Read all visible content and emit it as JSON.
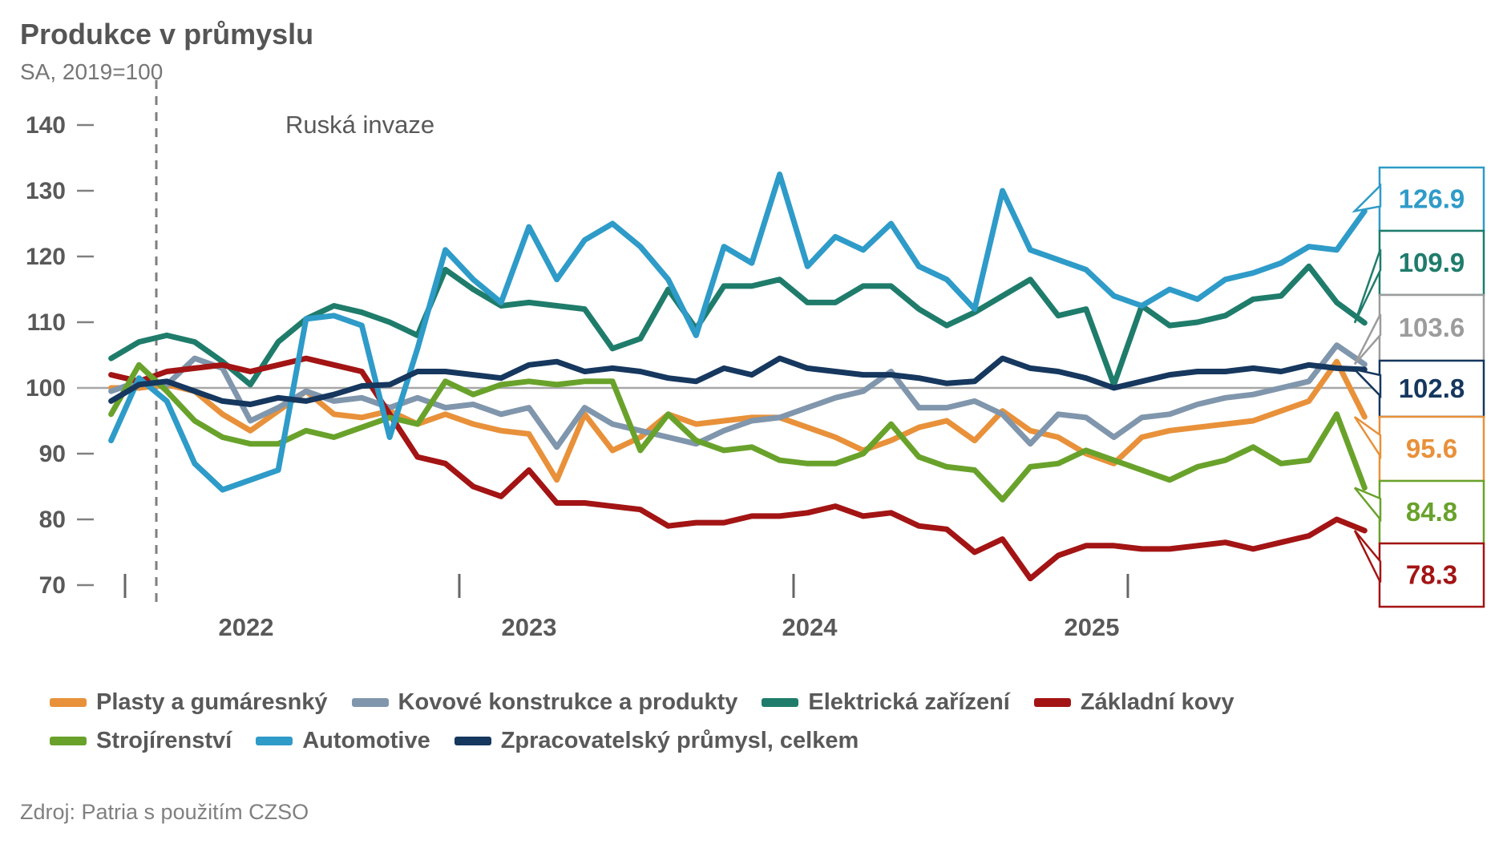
{
  "header": {
    "title": "Produkce v průmyslu",
    "subtitle": "SA, 2019=100"
  },
  "annotation": {
    "label": "Ruská invaze"
  },
  "source": {
    "label": "Zdroj: Patria s použitím CZSO"
  },
  "chart_data": {
    "type": "line",
    "title": "Produkce v průmyslu",
    "subtitle": "SA, 2019=100",
    "grid": "baseline-only",
    "legend_position": "bottom",
    "x": [
      "2021-12",
      "2022-01",
      "2022-02",
      "2022-03",
      "2022-04",
      "2022-05",
      "2022-06",
      "2022-07",
      "2022-08",
      "2022-09",
      "2022-10",
      "2022-11",
      "2022-12",
      "2023-01",
      "2023-02",
      "2023-03",
      "2023-04",
      "2023-05",
      "2023-06",
      "2023-07",
      "2023-08",
      "2023-09",
      "2023-10",
      "2023-11",
      "2023-12",
      "2024-01",
      "2024-02",
      "2024-03",
      "2024-04",
      "2024-05",
      "2024-06",
      "2024-07",
      "2024-08",
      "2024-09",
      "2024-10",
      "2024-11",
      "2024-12",
      "2025-01",
      "2025-02",
      "2025-03",
      "2025-04",
      "2025-05",
      "2025-06",
      "2025-07",
      "2025-08",
      "2025-09"
    ],
    "x_axis": {
      "year_labels": [
        "2022",
        "2023",
        "2024",
        "2025"
      ]
    },
    "y_axis": {
      "ticks": [
        140,
        130,
        120,
        110,
        100,
        90,
        80,
        70
      ],
      "range": [
        70,
        140
      ],
      "baseline": 100
    },
    "event_line": {
      "label": "Ruská invaze",
      "x": "2022-02"
    },
    "series": [
      {
        "name": "Plasty a gumáresnký",
        "color": "#E8913A",
        "end_label": "95.6",
        "values": [
          100,
          100,
          100.5,
          99.5,
          96,
          93.5,
          96.5,
          99.5,
          96,
          95.5,
          96.5,
          94.5,
          96,
          94.5,
          93.5,
          93,
          86,
          96,
          90.5,
          92.5,
          96,
          94.5,
          95,
          95.5,
          95.5,
          94,
          92.5,
          90.5,
          92,
          94,
          95,
          92,
          96.5,
          93.5,
          92.5,
          90,
          88.5,
          92.5,
          93.5,
          94,
          94.5,
          95,
          96.5,
          98,
          104,
          95.6
        ]
      },
      {
        "name": "Kovové konstrukce a produkty",
        "color": "#8096AC",
        "callout_color": "#9C9C9C",
        "end_label": "103.6",
        "values": [
          99.5,
          101,
          100.5,
          104.5,
          103,
          95,
          97,
          99.5,
          98,
          98.5,
          97,
          98.5,
          97,
          97.5,
          96,
          97,
          91,
          97,
          94.5,
          93.5,
          92.5,
          91.5,
          93.5,
          95,
          95.5,
          97,
          98.5,
          99.5,
          102.5,
          97,
          97,
          98,
          96,
          91.5,
          96,
          95.5,
          92.5,
          95.5,
          96,
          97.5,
          98.5,
          99,
          100,
          101,
          106.5,
          103.6
        ]
      },
      {
        "name": "Elektrická zařízení",
        "color": "#1F7C6B",
        "end_label": "109.9",
        "values": [
          104.5,
          107,
          108,
          107,
          104,
          100.5,
          107,
          110.5,
          112.5,
          111.5,
          110,
          108,
          118,
          115,
          112.5,
          113,
          112.5,
          112,
          106,
          107.5,
          115,
          109,
          115.5,
          115.5,
          116.5,
          113,
          113,
          115.5,
          115.5,
          112,
          109.5,
          111.5,
          114,
          116.5,
          111,
          112,
          100.5,
          112.5,
          109.5,
          110,
          111,
          113.5,
          114,
          118.5,
          113,
          109.9
        ]
      },
      {
        "name": "Základní kovy",
        "color": "#A31414",
        "end_label": "78.3",
        "values": [
          102,
          101,
          102.5,
          103,
          103.5,
          102.5,
          103.5,
          104.5,
          103.5,
          102.5,
          96,
          89.5,
          88.5,
          85,
          83.5,
          87.5,
          82.5,
          82.5,
          82,
          81.5,
          79,
          79.5,
          79.5,
          80.5,
          80.5,
          81,
          82,
          80.5,
          81,
          79,
          78.5,
          75,
          77,
          71,
          74.5,
          76,
          76,
          75.5,
          75.5,
          76,
          76.5,
          75.5,
          76.5,
          77.5,
          80,
          78.3
        ]
      },
      {
        "name": "Strojírenství",
        "color": "#69A22B",
        "end_label": "84.8",
        "values": [
          96,
          103.5,
          99.5,
          95,
          92.5,
          91.5,
          91.5,
          93.5,
          92.5,
          94,
          95.5,
          94.5,
          101,
          99,
          100.5,
          101,
          100.5,
          101,
          101,
          90.5,
          96,
          92,
          90.5,
          91,
          89,
          88.5,
          88.5,
          90,
          94.5,
          89.5,
          88,
          87.5,
          83,
          88,
          88.5,
          90.5,
          89,
          87.5,
          86,
          88,
          89,
          91,
          88.5,
          89,
          96,
          84.8
        ]
      },
      {
        "name": "Automotive",
        "color": "#2E9BC8",
        "end_label": "126.9",
        "values": [
          92,
          101.5,
          98,
          88.5,
          84.5,
          86,
          87.5,
          110.5,
          111,
          109.5,
          92.5,
          106,
          121,
          116.5,
          113,
          124.5,
          116.5,
          122.5,
          125,
          121.5,
          116.5,
          108,
          121.5,
          119,
          132.5,
          118.5,
          123,
          121,
          125,
          118.5,
          116.5,
          112,
          130,
          121,
          119.5,
          118,
          114,
          112.5,
          115,
          113.5,
          116.5,
          117.5,
          119,
          121.5,
          121,
          126.9
        ]
      },
      {
        "name": "Zpracovatelský průmysl, celkem",
        "color": "#16375E",
        "end_label": "102.8",
        "values": [
          98,
          100.5,
          101,
          99.5,
          98,
          97.5,
          98.5,
          98,
          99,
          100.3,
          100.5,
          102.5,
          102.5,
          102,
          101.5,
          103.5,
          104,
          102.5,
          103,
          102.5,
          101.5,
          101,
          103,
          102,
          104.5,
          103,
          102.5,
          102,
          102,
          101.5,
          100.7,
          101,
          104.5,
          103,
          102.5,
          101.5,
          100,
          101,
          102,
          102.5,
          102.5,
          103,
          102.5,
          103.5,
          103,
          102.8
        ]
      }
    ],
    "callouts_top_to_bottom": [
      "126.9",
      "109.9",
      "103.6",
      "102.8",
      "95.6",
      "84.8",
      "78.3"
    ]
  },
  "legend": {
    "row1": [
      0,
      1,
      2,
      3
    ],
    "row2": [
      4,
      5,
      6
    ]
  }
}
